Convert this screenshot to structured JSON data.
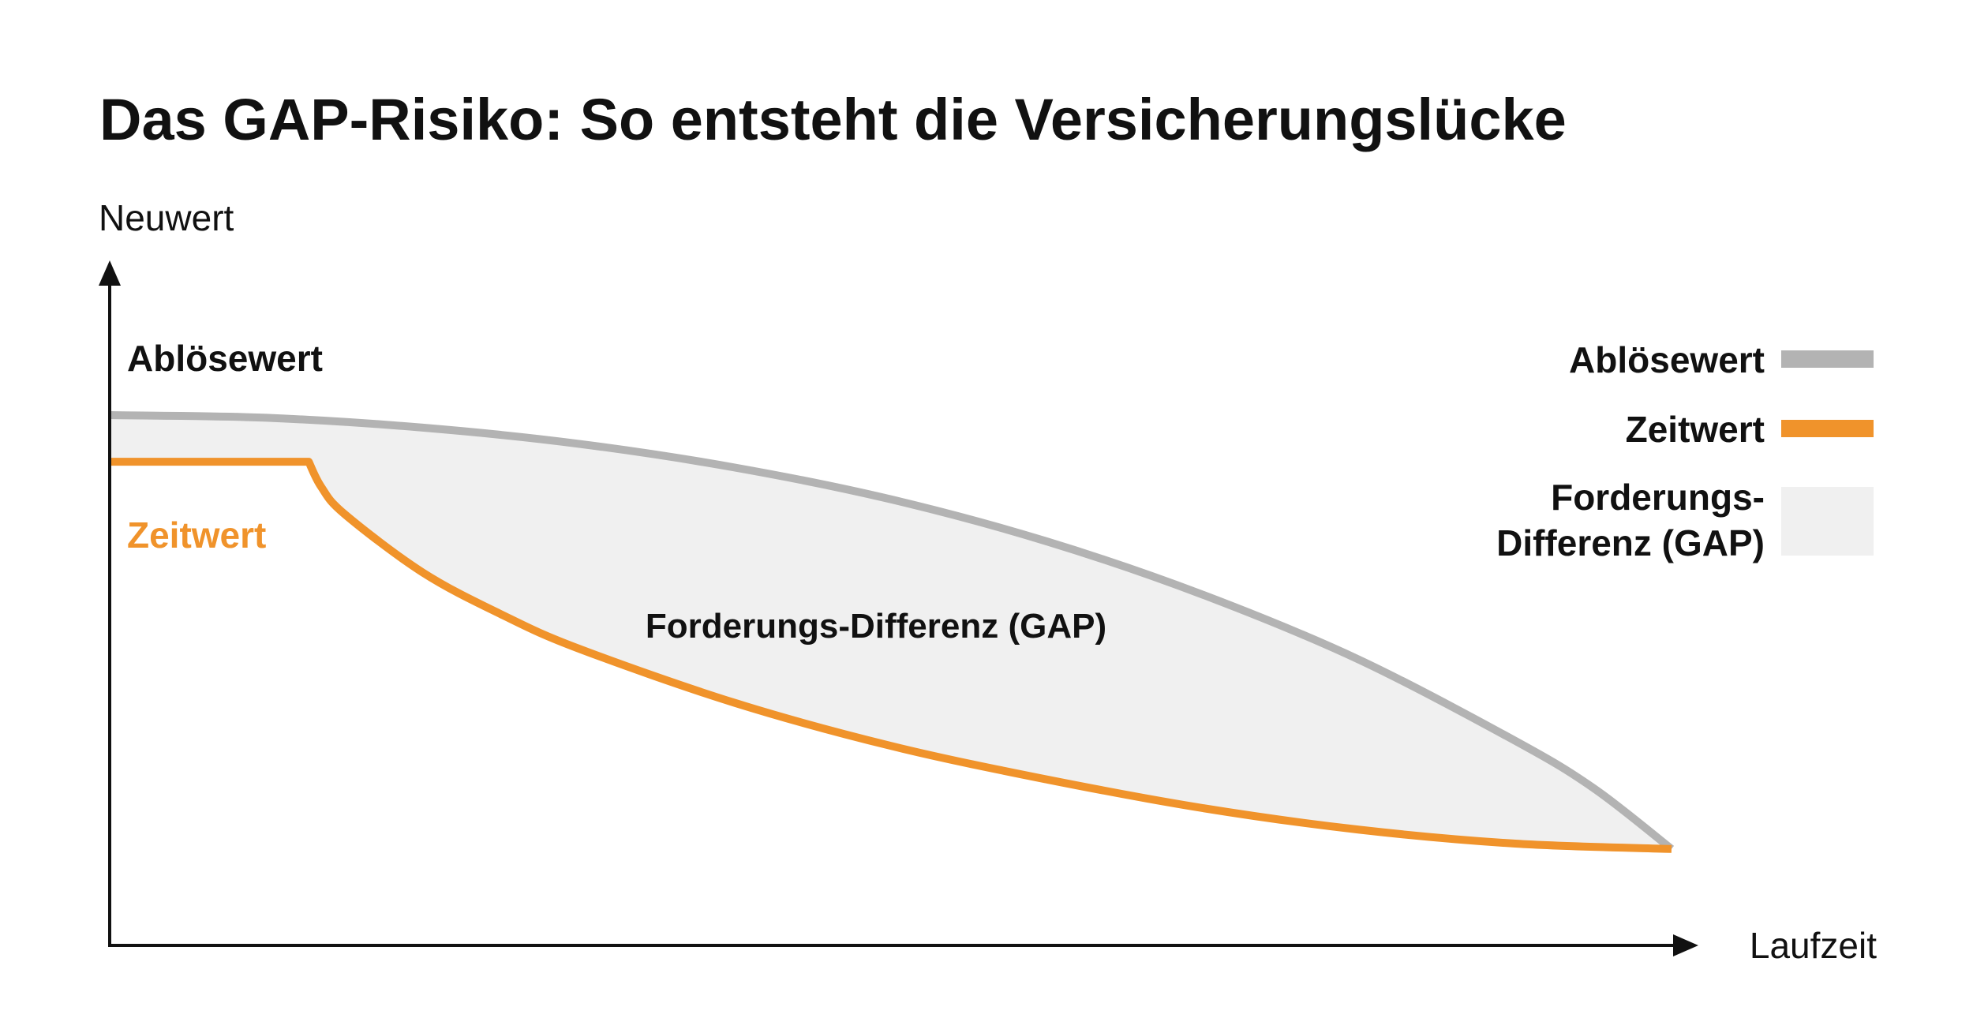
{
  "chart_data": {
    "type": "area",
    "title": "Das GAP-Risiko: So entsteht die Versicherungslücke",
    "ylabel": "Neuwert",
    "xlabel": "Laufzeit",
    "xlim": [
      0,
      100
    ],
    "ylim": [
      0,
      100
    ],
    "grid": false,
    "legend_position": "right",
    "series": [
      {
        "key": "abloesewert",
        "name": "Ablösewert",
        "color": "#b3b3b3",
        "x": [
          0,
          10,
          20,
          30,
          40,
          50,
          60,
          70,
          80,
          90,
          95,
          100
        ],
        "y": [
          100,
          99.4,
          97.2,
          93.6,
          88.3,
          81.2,
          71.8,
          59.9,
          45.4,
          27.3,
          16.8,
          3.2
        ]
      },
      {
        "key": "zeitwert",
        "name": "Zeitwert",
        "color": "#f0932b",
        "x": [
          0,
          12.7,
          13.5,
          15,
          20,
          25,
          30,
          40,
          50,
          60,
          70,
          80,
          90,
          100
        ],
        "y": [
          89.6,
          89.6,
          84,
          77.9,
          64.9,
          55.6,
          47.9,
          35.8,
          26.2,
          18.7,
          12.3,
          7.5,
          4.4,
          3.2
        ]
      }
    ],
    "area": {
      "name": "Forderungs-Differenz (GAP)",
      "between": [
        "abloesewert",
        "zeitwert"
      ],
      "color": "#f0f0f0"
    },
    "annotations": {
      "abloesewert_label": "Ablösewert",
      "zeitwert_label": "Zeitwert",
      "gap_label": "Forderungs-Differenz (GAP)"
    },
    "legend": [
      {
        "label": "Ablösewert",
        "color": "#b3b3b3",
        "shape": "line"
      },
      {
        "label": "Zeitwert",
        "color": "#f0932b",
        "shape": "line"
      },
      {
        "label_lines": [
          "Forderungs-",
          "Differenz (GAP)"
        ],
        "color": "#f0f0f0",
        "shape": "box"
      }
    ]
  }
}
